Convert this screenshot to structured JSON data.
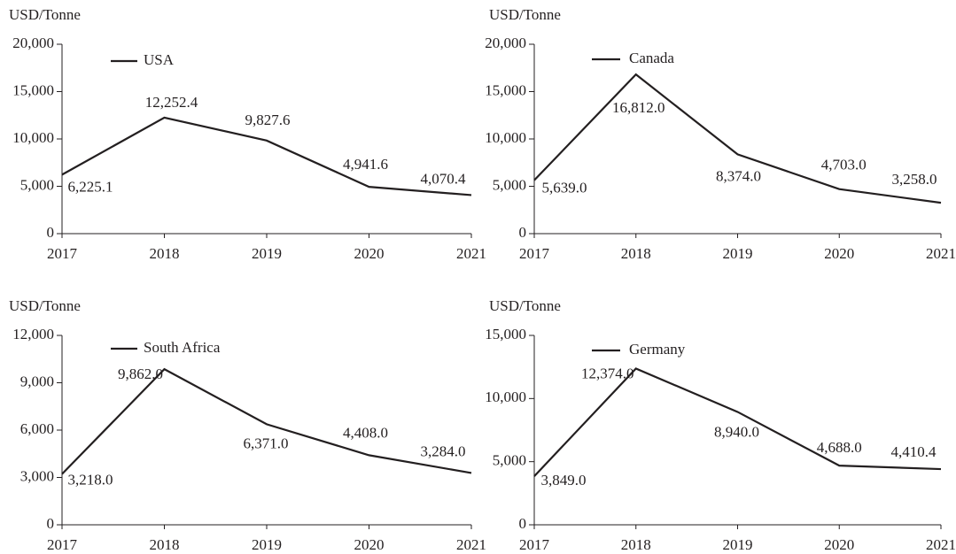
{
  "chart_data": [
    {
      "type": "line",
      "ylabel": "USD/Tonne",
      "categories": [
        "2017",
        "2018",
        "2019",
        "2020",
        "2021"
      ],
      "series": [
        {
          "name": "USA",
          "color": "#231f20",
          "values": [
            6225.1,
            12252.4,
            9827.6,
            4941.6,
            4070.4
          ],
          "value_labels": [
            "6,225.1",
            "12,252.4",
            "9,827.6",
            "4,941.6",
            "4,070.4"
          ]
        }
      ],
      "ylim": [
        0,
        20000
      ],
      "yticks": [
        0,
        {
          "value": 5000,
          "label": "5,000"
        },
        {
          "value": 10000,
          "label": "10,000"
        },
        {
          "value": 15000,
          "label": "15,000"
        },
        {
          "value": 20000,
          "label": "20,000"
        }
      ]
    },
    {
      "type": "line",
      "ylabel": "USD/Tonne",
      "categories": [
        "2017",
        "2018",
        "2019",
        "2020",
        "2021"
      ],
      "series": [
        {
          "name": "Canada",
          "color": "#231f20",
          "values": [
            5639.0,
            16812.0,
            8374.0,
            4703.0,
            3258.0
          ],
          "value_labels": [
            "5,639.0",
            "16,812.0",
            "8,374.0",
            "4,703.0",
            "3,258.0"
          ]
        }
      ],
      "ylim": [
        0,
        20000
      ],
      "yticks": [
        0,
        {
          "value": 5000,
          "label": "5,000"
        },
        {
          "value": 10000,
          "label": "10,000"
        },
        {
          "value": 15000,
          "label": "15,000"
        },
        {
          "value": 20000,
          "label": "20,000"
        }
      ]
    },
    {
      "type": "line",
      "ylabel": "USD/Tonne",
      "categories": [
        "2017",
        "2018",
        "2019",
        "2020",
        "2021"
      ],
      "series": [
        {
          "name": "South Africa",
          "color": "#231f20",
          "values": [
            3218.0,
            9862.0,
            6371.0,
            4408.0,
            3284.0
          ],
          "value_labels": [
            "3,218.0",
            "9,862.0",
            "6,371.0",
            "4,408.0",
            "3,284.0"
          ]
        }
      ],
      "ylim": [
        0,
        12000
      ],
      "yticks": [
        0,
        {
          "value": 3000,
          "label": "3,000"
        },
        {
          "value": 6000,
          "label": "6,000"
        },
        {
          "value": 9000,
          "label": "9,000"
        },
        {
          "value": 12000,
          "label": "12,000"
        }
      ]
    },
    {
      "type": "line",
      "ylabel": "USD/Tonne",
      "categories": [
        "2017",
        "2018",
        "2019",
        "2020",
        "2021"
      ],
      "series": [
        {
          "name": "Germany",
          "color": "#231f20",
          "values": [
            3849.0,
            12374.0,
            8940.0,
            4688.0,
            4410.4
          ],
          "value_labels": [
            "3,849.0",
            "12,374.0",
            "8,940.0",
            "4,688.0",
            "4,410.4"
          ]
        }
      ],
      "ylim": [
        0,
        15000
      ],
      "yticks": [
        0,
        {
          "value": 5000,
          "label": "5,000"
        },
        {
          "value": 10000,
          "label": "10,000"
        },
        {
          "value": 15000,
          "label": "15,000"
        }
      ]
    }
  ]
}
